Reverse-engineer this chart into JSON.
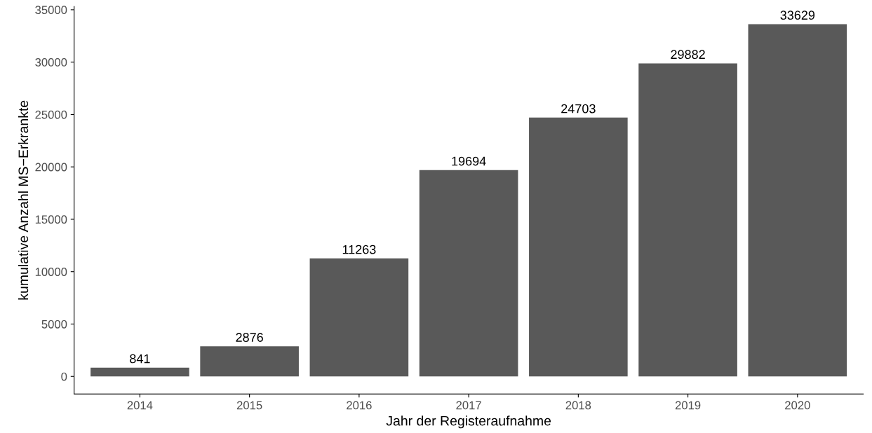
{
  "chart_data": {
    "type": "bar",
    "xlabel": "Jahr der Registeraufnahme",
    "ylabel": "kumulative Anzahl MS−Erkrankte",
    "categories": [
      "2014",
      "2015",
      "2016",
      "2017",
      "2018",
      "2019",
      "2020"
    ],
    "values": [
      841,
      2876,
      11263,
      19694,
      24703,
      29882,
      33629
    ],
    "color": "#595959",
    "ylim": [
      -1681,
      35310
    ],
    "yticks": [
      0,
      5000,
      10000,
      15000,
      20000,
      25000,
      30000,
      35000
    ],
    "grid": false,
    "legend": false,
    "data_labels": true
  }
}
